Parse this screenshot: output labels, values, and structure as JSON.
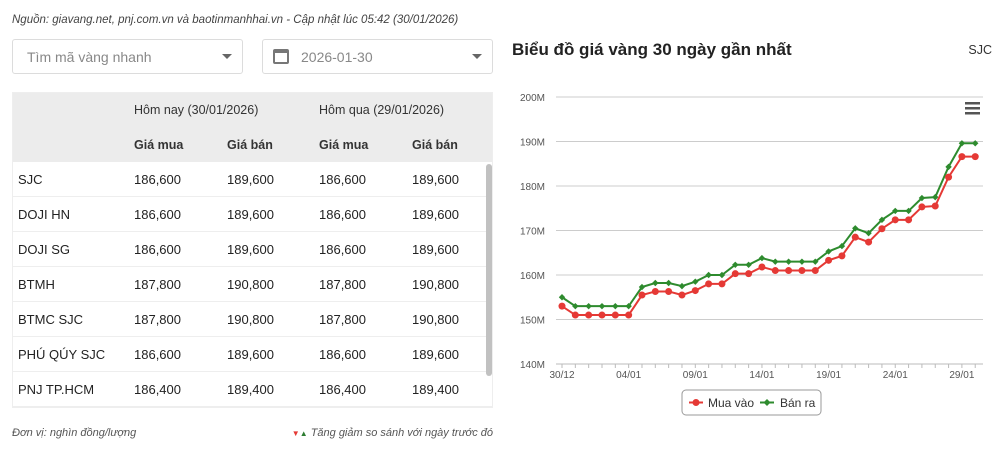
{
  "source_line": "Nguồn: giavang.net, pnj.com.vn và baotinmanhhai.vn - Cập nhật lúc 05:42 (30/01/2026)",
  "search": {
    "placeholder": "Tìm mã vàng nhanh"
  },
  "date_picker": {
    "value": "2026-01-30"
  },
  "table": {
    "header_today": "Hôm nay (30/01/2026)",
    "header_yesterday": "Hôm qua (29/01/2026)",
    "sub_headers": [
      "Giá mua",
      "Giá bán",
      "Giá mua",
      "Giá bán"
    ],
    "rows": [
      {
        "name": "SJC",
        "today_buy": "186,600",
        "today_sell": "189,600",
        "yest_buy": "186,600",
        "yest_sell": "189,600"
      },
      {
        "name": "DOJI HN",
        "today_buy": "186,600",
        "today_sell": "189,600",
        "yest_buy": "186,600",
        "yest_sell": "189,600"
      },
      {
        "name": "DOJI SG",
        "today_buy": "186,600",
        "today_sell": "189,600",
        "yest_buy": "186,600",
        "yest_sell": "189,600"
      },
      {
        "name": "BTMH",
        "today_buy": "187,800",
        "today_sell": "190,800",
        "yest_buy": "187,800",
        "yest_sell": "190,800"
      },
      {
        "name": "BTMC SJC",
        "today_buy": "187,800",
        "today_sell": "190,800",
        "yest_buy": "187,800",
        "yest_sell": "190,800"
      },
      {
        "name": "PHÚ QÚY SJC",
        "today_buy": "186,600",
        "today_sell": "189,600",
        "yest_buy": "186,600",
        "yest_sell": "189,600"
      },
      {
        "name": "PNJ TP.HCM",
        "today_buy": "186,400",
        "today_sell": "189,400",
        "yest_buy": "186,400",
        "yest_sell": "189,400"
      }
    ]
  },
  "footer": {
    "unit": "Đơn vị: nghìn đồng/lượng",
    "legend_note": "Tăng giảm so sánh với ngày trước đó",
    "down_marker": "▼",
    "up_marker": "▲"
  },
  "chart_panel": {
    "title": "Biểu đồ giá vàng 30 ngày gần nhất",
    "code": "SJC",
    "menu_icon": "hamburger-icon"
  },
  "chart_data": {
    "type": "line",
    "title": "Biểu đồ giá vàng 30 ngày gần nhất",
    "xlabel": "",
    "ylabel": "",
    "ylim": [
      140,
      200
    ],
    "y_ticks": [
      "140M",
      "150M",
      "160M",
      "170M",
      "180M",
      "190M",
      "200M"
    ],
    "x_tick_labels": [
      "30/12",
      "04/01",
      "09/01",
      "14/01",
      "19/01",
      "24/01",
      "29/01"
    ],
    "grid": true,
    "legend_position": "bottom",
    "x": [
      "30/12",
      "31/12",
      "01/01",
      "02/01",
      "03/01",
      "04/01",
      "05/01",
      "06/01",
      "07/01",
      "08/01",
      "09/01",
      "10/01",
      "11/01",
      "12/01",
      "13/01",
      "14/01",
      "15/01",
      "16/01",
      "17/01",
      "18/01",
      "19/01",
      "20/01",
      "21/01",
      "22/01",
      "23/01",
      "24/01",
      "25/01",
      "26/01",
      "27/01",
      "28/01",
      "29/01",
      "30/01"
    ],
    "series": [
      {
        "name": "Mua vào",
        "color": "#e53935",
        "values": [
          153,
          151,
          151,
          151,
          151,
          151,
          155.5,
          156.3,
          156.3,
          155.5,
          156.5,
          158,
          158,
          160.3,
          160.3,
          161.8,
          161,
          161,
          161,
          161,
          163.3,
          164.3,
          168.5,
          167.4,
          170.4,
          172.4,
          172.4,
          175.3,
          175.5,
          182,
          186.6,
          186.6
        ]
      },
      {
        "name": "Bán ra",
        "color": "#2e8b2e",
        "values": [
          155,
          153,
          153,
          153,
          153,
          153,
          157.3,
          158.2,
          158.2,
          157.5,
          158.5,
          160,
          160,
          162.3,
          162.3,
          163.8,
          163,
          163,
          163,
          163,
          165.3,
          166.5,
          170.5,
          169.4,
          172.4,
          174.4,
          174.4,
          177.3,
          177.5,
          184.3,
          189.6,
          189.6
        ]
      }
    ]
  }
}
